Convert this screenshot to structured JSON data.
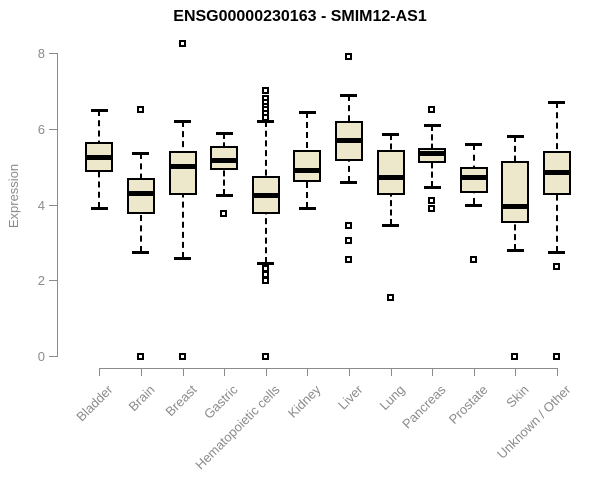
{
  "colors": {
    "box_fill": "#ede7cb",
    "box_border": "#000000",
    "median": "#000000",
    "axis": "#8b8b8b",
    "tick_label": "#8b8b8b",
    "title": "#000000"
  },
  "chart_data": {
    "type": "boxplot",
    "title": "ENSG00000230163 - SMIM12-AS1",
    "xlabel": "",
    "ylabel": "Expression",
    "ylim": [
      0,
      8
    ],
    "yticks": [
      0,
      2,
      4,
      6,
      8
    ],
    "grid": false,
    "legend": "none",
    "categories": [
      "Bladder",
      "Brain",
      "Breast",
      "Gastric",
      "Hematopoietic cells",
      "Kidney",
      "Liver",
      "Lung",
      "Pancreas",
      "Prostate",
      "Skin",
      "Unknown / Other"
    ],
    "series": [
      {
        "name": "Bladder",
        "low": 3.9,
        "q1": 4.85,
        "median": 5.25,
        "q3": 5.65,
        "high": 6.5,
        "outliers": []
      },
      {
        "name": "Brain",
        "low": 2.75,
        "q1": 3.75,
        "median": 4.3,
        "q3": 4.7,
        "high": 5.35,
        "outliers": [
          6.5,
          0
        ]
      },
      {
        "name": "Breast",
        "low": 2.6,
        "q1": 4.25,
        "median": 5.0,
        "q3": 5.4,
        "high": 6.2,
        "outliers": [
          8.25,
          0
        ]
      },
      {
        "name": "Gastric",
        "low": 4.25,
        "q1": 4.9,
        "median": 5.15,
        "q3": 5.55,
        "high": 5.9,
        "outliers": [
          3.75
        ]
      },
      {
        "name": "Hematopoietic cells",
        "low": 2.45,
        "q1": 3.75,
        "median": 4.25,
        "q3": 4.75,
        "high": 6.2,
        "outliers": [
          7.0,
          6.8,
          6.7,
          6.6,
          6.5,
          6.4,
          6.3,
          2.3,
          2.15,
          2.0,
          0
        ]
      },
      {
        "name": "Kidney",
        "low": 3.9,
        "q1": 4.6,
        "median": 4.9,
        "q3": 5.45,
        "high": 6.45,
        "outliers": []
      },
      {
        "name": "Liver",
        "low": 4.6,
        "q1": 5.15,
        "median": 5.7,
        "q3": 6.2,
        "high": 6.9,
        "outliers": [
          7.9,
          3.45,
          3.05,
          2.55
        ]
      },
      {
        "name": "Lung",
        "low": 3.45,
        "q1": 4.25,
        "median": 4.7,
        "q3": 5.45,
        "high": 5.85,
        "outliers": [
          1.55
        ]
      },
      {
        "name": "Pancreas",
        "low": 4.45,
        "q1": 5.1,
        "median": 5.35,
        "q3": 5.5,
        "high": 6.1,
        "outliers": [
          6.5,
          4.1,
          3.9
        ]
      },
      {
        "name": "Prostate",
        "low": 4.0,
        "q1": 4.3,
        "median": 4.7,
        "q3": 5.0,
        "high": 5.6,
        "outliers": [
          2.55
        ]
      },
      {
        "name": "Skin",
        "low": 2.8,
        "q1": 3.5,
        "median": 3.95,
        "q3": 5.15,
        "high": 5.8,
        "outliers": [
          0
        ]
      },
      {
        "name": "Unknown / Other",
        "low": 2.75,
        "q1": 4.25,
        "median": 4.85,
        "q3": 5.4,
        "high": 6.7,
        "outliers": [
          2.35,
          0
        ]
      }
    ]
  }
}
